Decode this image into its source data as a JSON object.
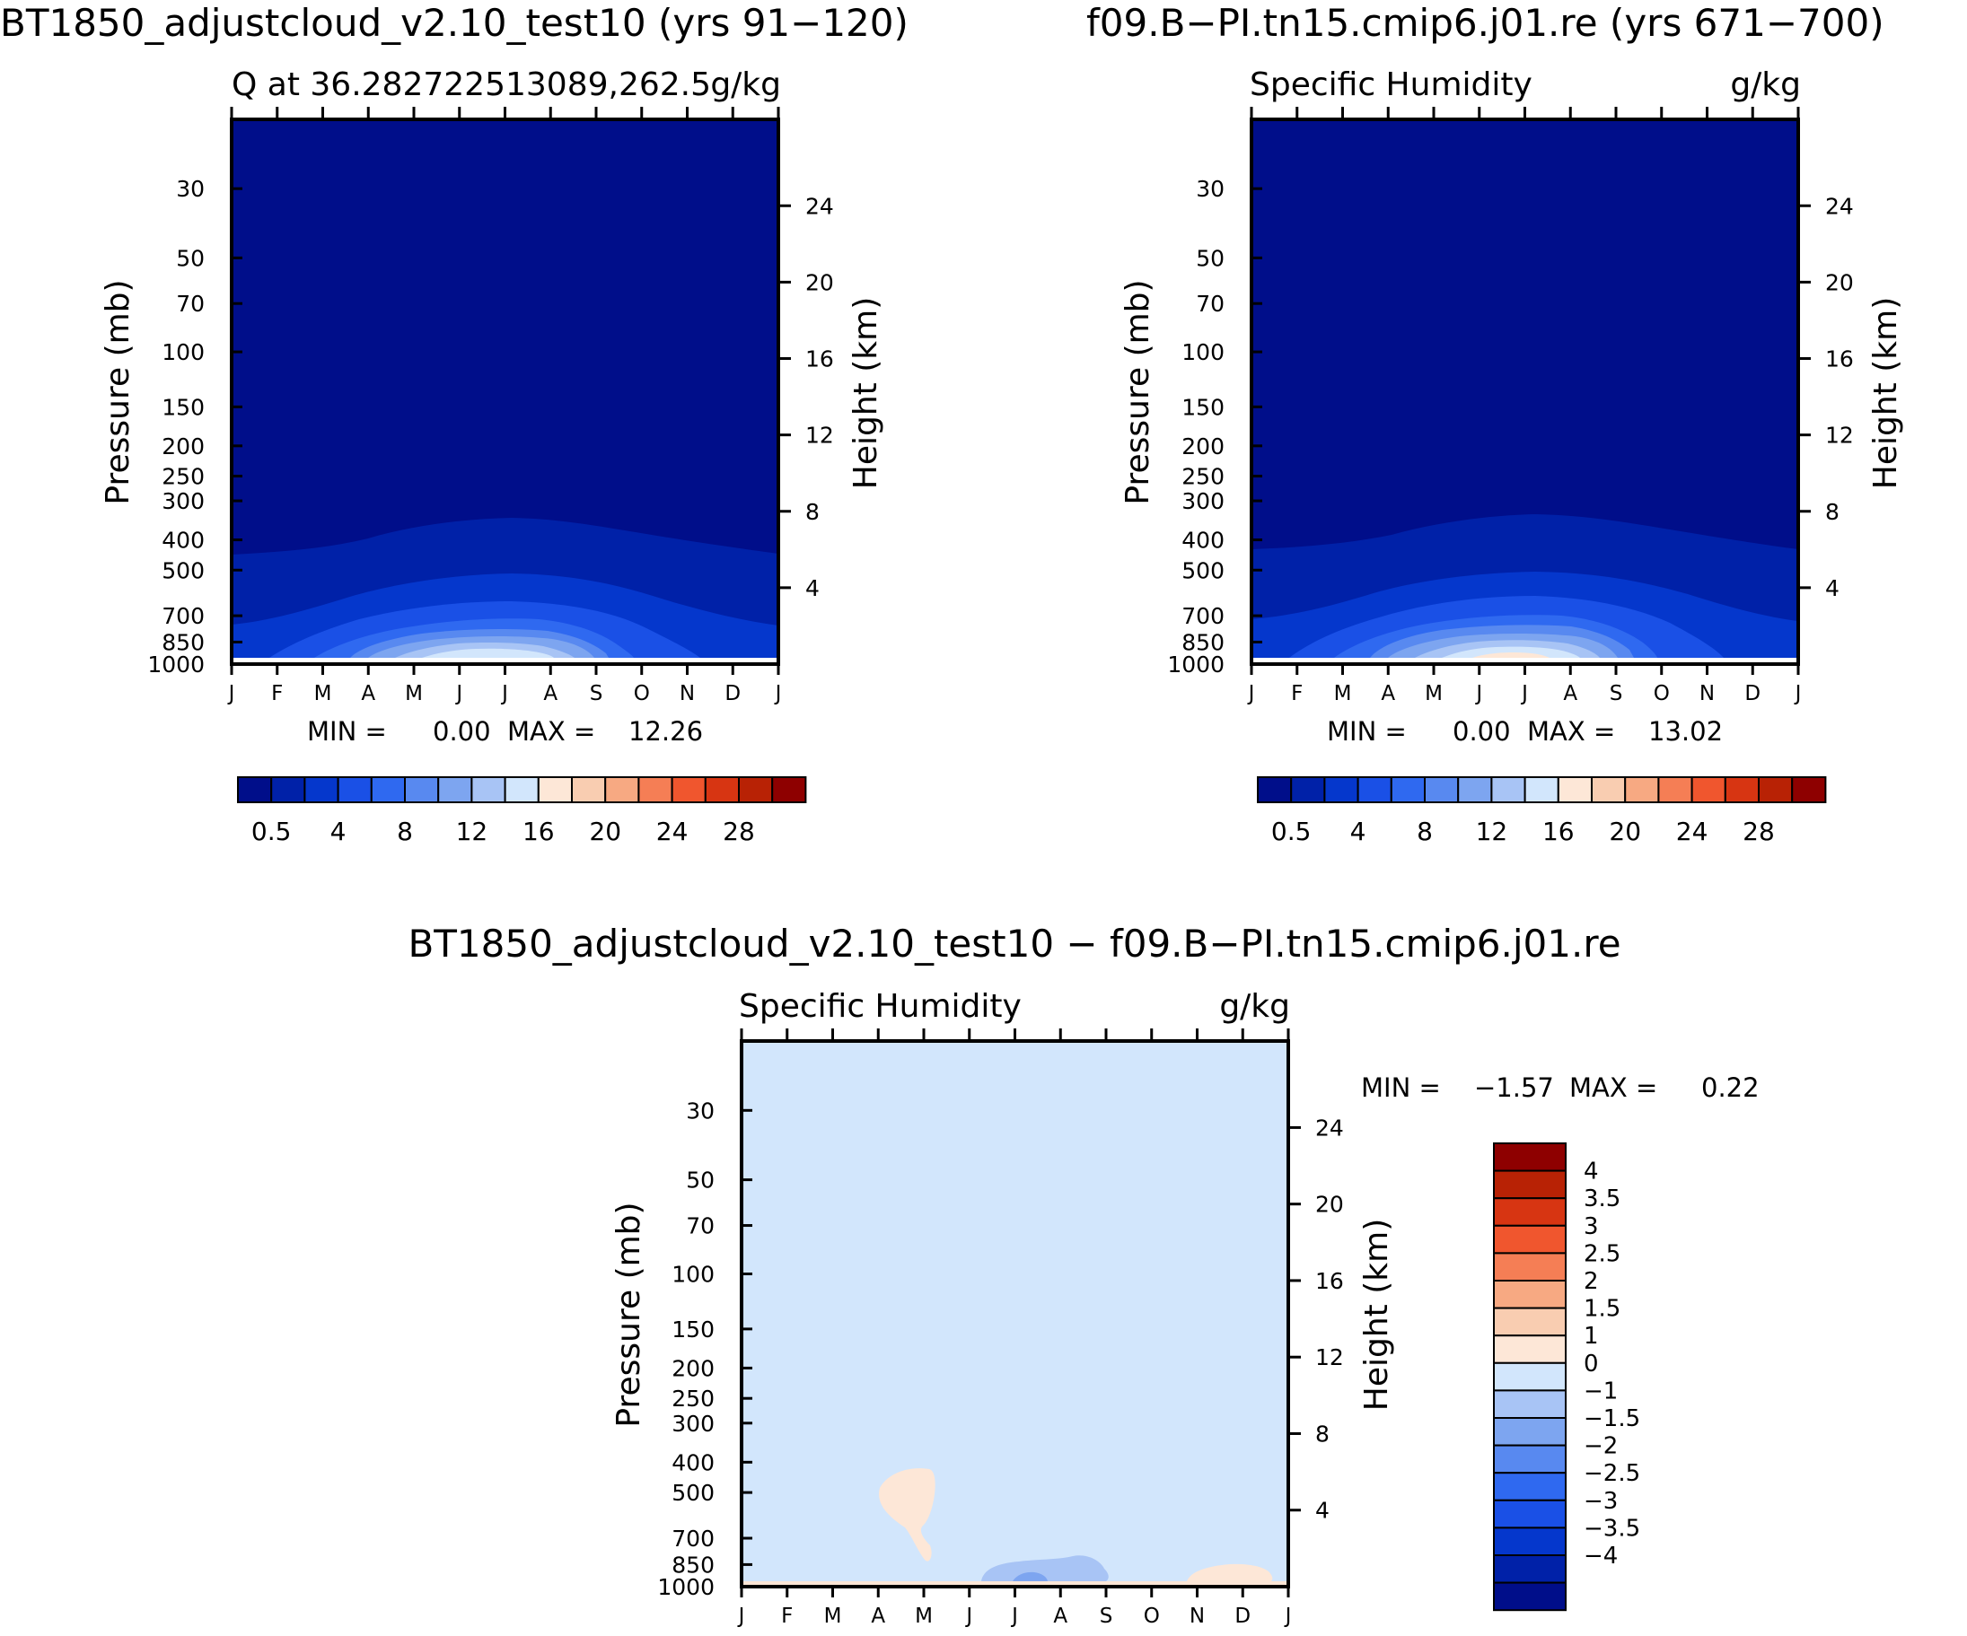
{
  "colors": {
    "q_palette": [
      "#000e8a",
      "#0021a8",
      "#0537cc",
      "#1a50e6",
      "#2f69f0",
      "#5889f0",
      "#7da5f0",
      "#a8c4f5",
      "#d2e6fc",
      "#fde7d7",
      "#f9cdb1",
      "#f7a982",
      "#f57e55",
      "#f0562e",
      "#d73512",
      "#b82205",
      "#8e0000"
    ],
    "diff_palette": [
      "#000e8a",
      "#0021a8",
      "#0537cc",
      "#1a50e6",
      "#2f69f0",
      "#5889f0",
      "#7da5f0",
      "#a8c4f5",
      "#d2e6fc",
      "#fde7d7",
      "#f9cdb1",
      "#f7a982",
      "#f57e55",
      "#f0562e",
      "#d73512",
      "#b82205",
      "#8e0000"
    ]
  },
  "chart_data": [
    {
      "type": "contour",
      "case_title": "BT1850_adjustcloud_v2.10_test10 (yrs 91−120)",
      "subtitle_left": "Q at 36.28272251308­9,262.5",
      "units": "g/kg",
      "ylabel_left": "Pressure (mb)",
      "ylabel_right": "Height (km)",
      "xlabels": [
        "J",
        "F",
        "M",
        "A",
        "M",
        "J",
        "J",
        "A",
        "S",
        "O",
        "N",
        "D",
        "J"
      ],
      "pressure_ticks": [
        "30",
        "50",
        "70",
        "100",
        "150",
        "200",
        "250",
        "300",
        "400",
        "500",
        "700",
        "850",
        "1000"
      ],
      "pressure_values": [
        30,
        50,
        70,
        100,
        150,
        200,
        250,
        300,
        400,
        500,
        700,
        850,
        1000
      ],
      "height_ticks": [
        "24",
        "20",
        "16",
        "12",
        "8",
        "4"
      ],
      "height_values": [
        24,
        20,
        16,
        12,
        8,
        4
      ],
      "stats": {
        "min_label": "MIN =",
        "min": "0.00",
        "max_label": "MAX =",
        "max": "12.26"
      },
      "colorbar_labels": [
        "0.5",
        "4",
        "8",
        "12",
        "16",
        "20",
        "24",
        "28"
      ],
      "contour_levels": [
        0.5,
        1,
        2,
        3,
        4,
        5,
        6,
        7,
        8,
        9,
        10,
        11,
        12
      ],
      "field_boundary_pressure_mb": {
        "level_0.5": [
          505,
          500,
          490,
          465,
          430,
          410,
          400,
          405,
          415,
          445,
          465,
          485,
          505
        ],
        "level_1": [
          760,
          750,
          715,
          670,
          620,
          585,
          570,
          575,
          600,
          650,
          700,
          740,
          760
        ],
        "level_2": [
          980,
          960,
          900,
          830,
          790,
          760,
          745,
          750,
          770,
          820,
          900,
          960,
          980
        ]
      }
    },
    {
      "type": "contour",
      "case_title": "f09.B−PI.tn15.cmip6.j01.re (yrs 671−700)",
      "subtitle_left": "Specific Humidity",
      "units": "g/kg",
      "ylabel_left": "Pressure (mb)",
      "ylabel_right": "Height (km)",
      "xlabels": [
        "J",
        "F",
        "M",
        "A",
        "M",
        "J",
        "J",
        "A",
        "S",
        "O",
        "N",
        "D",
        "J"
      ],
      "pressure_ticks": [
        "30",
        "50",
        "70",
        "100",
        "150",
        "200",
        "250",
        "300",
        "400",
        "500",
        "700",
        "850",
        "1000"
      ],
      "pressure_values": [
        30,
        50,
        70,
        100,
        150,
        200,
        250,
        300,
        400,
        500,
        700,
        850,
        1000
      ],
      "height_ticks": [
        "24",
        "20",
        "16",
        "12",
        "8",
        "4"
      ],
      "height_values": [
        24,
        20,
        16,
        12,
        8,
        4
      ],
      "stats": {
        "min_label": "MIN =",
        "min": "0.00",
        "max_label": "MAX =",
        "max": "13.02"
      },
      "colorbar_labels": [
        "0.5",
        "4",
        "8",
        "12",
        "16",
        "20",
        "24",
        "28"
      ],
      "contour_levels": [
        0.5,
        1,
        2,
        3,
        4,
        5,
        6,
        7,
        8,
        9,
        10,
        11,
        12,
        13
      ],
      "field_boundary_pressure_mb": {
        "level_0.5": [
          485,
          482,
          470,
          445,
          415,
          395,
          385,
          390,
          400,
          425,
          450,
          470,
          485
        ],
        "level_1": [
          740,
          730,
          700,
          650,
          600,
          570,
          555,
          560,
          585,
          635,
          690,
          725,
          740
        ],
        "level_2": [
          975,
          950,
          885,
          815,
          775,
          745,
          730,
          735,
          760,
          810,
          885,
          950,
          975
        ]
      }
    },
    {
      "type": "contour",
      "case_title": "BT1850_adjustcloud_v2.10_test10 − f09.B−PI.tn15.cmip6.j01.re",
      "subtitle_left": "Specific Humidity",
      "units": "g/kg",
      "ylabel_left": "Pressure (mb)",
      "ylabel_right": "Height (km)",
      "xlabels": [
        "J",
        "F",
        "M",
        "A",
        "M",
        "J",
        "J",
        "A",
        "S",
        "O",
        "N",
        "D",
        "J"
      ],
      "pressure_ticks": [
        "30",
        "50",
        "70",
        "100",
        "150",
        "200",
        "250",
        "300",
        "400",
        "500",
        "700",
        "850",
        "1000"
      ],
      "pressure_values": [
        30,
        50,
        70,
        100,
        150,
        200,
        250,
        300,
        400,
        500,
        700,
        850,
        1000
      ],
      "height_ticks": [
        "24",
        "20",
        "16",
        "12",
        "8",
        "4"
      ],
      "height_values": [
        24,
        20,
        16,
        12,
        8,
        4
      ],
      "stats": {
        "min_label": "MIN =",
        "min": "−1.57",
        "max_label": "MAX =",
        "max": "0.22"
      },
      "colorbar_labels": [
        "4",
        "3.5",
        "3",
        "2.5",
        "2",
        "1.5",
        "1",
        "0",
        "−1",
        "−1.5",
        "−2",
        "−2.5",
        "−3",
        "−3.5",
        "−4"
      ],
      "contour_levels": [
        -4,
        -3.5,
        -3,
        -2.5,
        -2,
        -1.5,
        -1,
        0,
        1,
        1.5,
        2,
        2.5,
        3,
        3.5,
        4
      ],
      "features": [
        {
          "sign": "positive",
          "month_range": [
            3.2,
            4.2
          ],
          "pressure_range_mb": [
            470,
            760
          ]
        },
        {
          "sign": "negative",
          "month_range": [
            5.3,
            7.8
          ],
          "pressure_range_mb": [
            820,
            990
          ]
        },
        {
          "sign": "positive",
          "month_range": [
            9.7,
            11.1
          ],
          "pressure_range_mb": [
            900,
            990
          ]
        }
      ]
    }
  ]
}
